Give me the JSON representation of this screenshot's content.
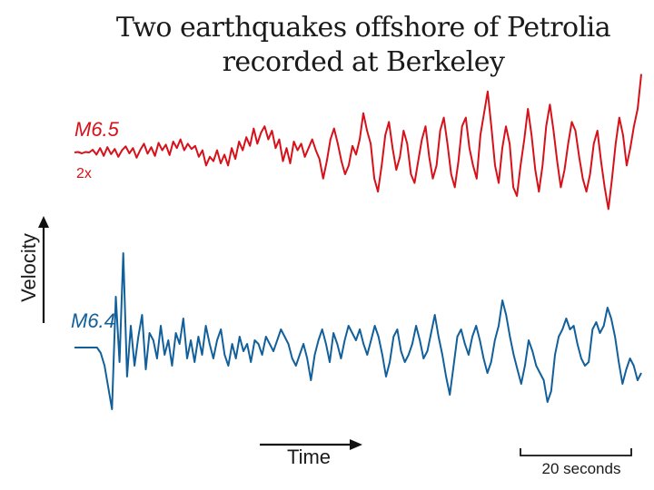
{
  "chart_data": {
    "type": "line",
    "title_line1": "Two earthquakes offshore of Petrolia",
    "title_line2": "recorded at Berkeley",
    "ylabel": "Velocity",
    "xlabel": "Time",
    "scale_bar_label": "20 seconds",
    "series": [
      {
        "name": "M6.5",
        "scale_note": "2x",
        "color": "#d6111a",
        "values": [
          0,
          0.01,
          -0.02,
          0.01,
          0,
          0.06,
          -0.05,
          0.1,
          -0.08,
          0.12,
          -0.04,
          0.08,
          -0.1,
          0.05,
          0.14,
          -0.02,
          0.1,
          -0.12,
          0.06,
          0.2,
          -0.03,
          0.12,
          -0.08,
          0.22,
          0.05,
          0.18,
          -0.06,
          0.25,
          0.1,
          0.3,
          0.05,
          0.2,
          0.08,
          0.15,
          -0.1,
          0.05,
          -0.3,
          -0.1,
          -0.2,
          0.05,
          -0.25,
          -0.05,
          -0.3,
          0.1,
          -0.15,
          0.25,
          0.05,
          0.35,
          0.15,
          0.55,
          0.2,
          0.45,
          0.6,
          0.3,
          0.5,
          0.1,
          0.3,
          -0.2,
          0.1,
          -0.25,
          0.25,
          0.05,
          0.2,
          -0.1,
          0.1,
          0.3,
          0.05,
          -0.15,
          -0.6,
          -0.2,
          0.3,
          0.55,
          0.2,
          -0.2,
          -0.5,
          -0.3,
          0.15,
          -0.05,
          0.3,
          0.9,
          0.5,
          0.2,
          -0.6,
          -0.9,
          -0.3,
          0.4,
          0.7,
          0.1,
          -0.4,
          -0.1,
          0.5,
          0.2,
          -0.5,
          -0.7,
          -0.2,
          0.3,
          0.6,
          -0.1,
          -0.6,
          -0.3,
          0.5,
          0.8,
          0.2,
          -0.5,
          -0.8,
          -0.2,
          0.6,
          0.8,
          0.1,
          -0.3,
          -0.6,
          0.4,
          0.9,
          1.4,
          0.6,
          -0.3,
          -0.7,
          0.1,
          0.6,
          0.2,
          -0.8,
          -1.0,
          -0.3,
          0.3,
          1.0,
          0.4,
          -0.4,
          -0.9,
          -0.3,
          0.6,
          1.1,
          0.5,
          -0.2,
          -0.8,
          -0.4,
          0.2,
          0.7,
          0.5,
          -0.1,
          -0.6,
          -0.9,
          -0.5,
          0.2,
          0.5,
          -0.2,
          -0.8,
          -1.3,
          -0.6,
          0.2,
          0.8,
          0.4,
          -0.3,
          0.1,
          0.6,
          1.0,
          1.8
        ]
      },
      {
        "name": "M6.4",
        "color": "#12609b",
        "values": [
          0,
          0,
          0,
          0,
          0,
          0,
          0,
          -0.15,
          -0.5,
          -1.1,
          -1.7,
          1.4,
          -0.4,
          2.6,
          -0.8,
          0.6,
          -0.5,
          0.3,
          0.9,
          -0.6,
          0.4,
          0.2,
          -0.3,
          0.6,
          -0.2,
          0.2,
          -0.5,
          0.4,
          0.1,
          0.8,
          -0.3,
          0.2,
          -0.4,
          0.3,
          -0.2,
          0.6,
          0.1,
          -0.3,
          0.2,
          0.5,
          -0.2,
          -0.5,
          0.1,
          -0.3,
          0.3,
          -0.1,
          0.1,
          -0.4,
          0.2,
          0.1,
          -0.2,
          0.3,
          0.1,
          -0.1,
          0.2,
          0.5,
          0.3,
          0.1,
          -0.3,
          -0.5,
          -0.2,
          0.1,
          -0.3,
          -0.9,
          -0.2,
          0.2,
          0.5,
          0.1,
          -0.4,
          0.4,
          0.1,
          -0.3,
          0.2,
          0.6,
          0.4,
          0.2,
          0.5,
          0.1,
          -0.2,
          0.2,
          0.6,
          0.3,
          -0.2,
          -0.8,
          -0.4,
          0.3,
          0.5,
          -0.1,
          -0.4,
          -0.2,
          0.1,
          0.6,
          0.2,
          -0.3,
          -0.1,
          0.4,
          0.9,
          0.3,
          -0.2,
          -0.8,
          -1.3,
          -0.5,
          0.3,
          0.5,
          0.1,
          -0.2,
          0.3,
          0.6,
          0.2,
          -0.3,
          -0.7,
          -0.4,
          0.2,
          0.6,
          1.3,
          0.9,
          0.3,
          -0.2,
          -0.6,
          -1.0,
          -0.5,
          0.2,
          -0.1,
          -0.5,
          -0.7,
          -0.9,
          -1.5,
          -1.2,
          -0.2,
          0.3,
          0.5,
          0.8,
          0.5,
          0.6,
          0.1,
          -0.3,
          -0.5,
          -0.4,
          0.5,
          0.7,
          0.4,
          0.6,
          1.1,
          0.8,
          0.3,
          -0.4,
          -1.0,
          -0.6,
          -0.3,
          -0.5,
          -0.9,
          -0.7
        ]
      }
    ]
  }
}
